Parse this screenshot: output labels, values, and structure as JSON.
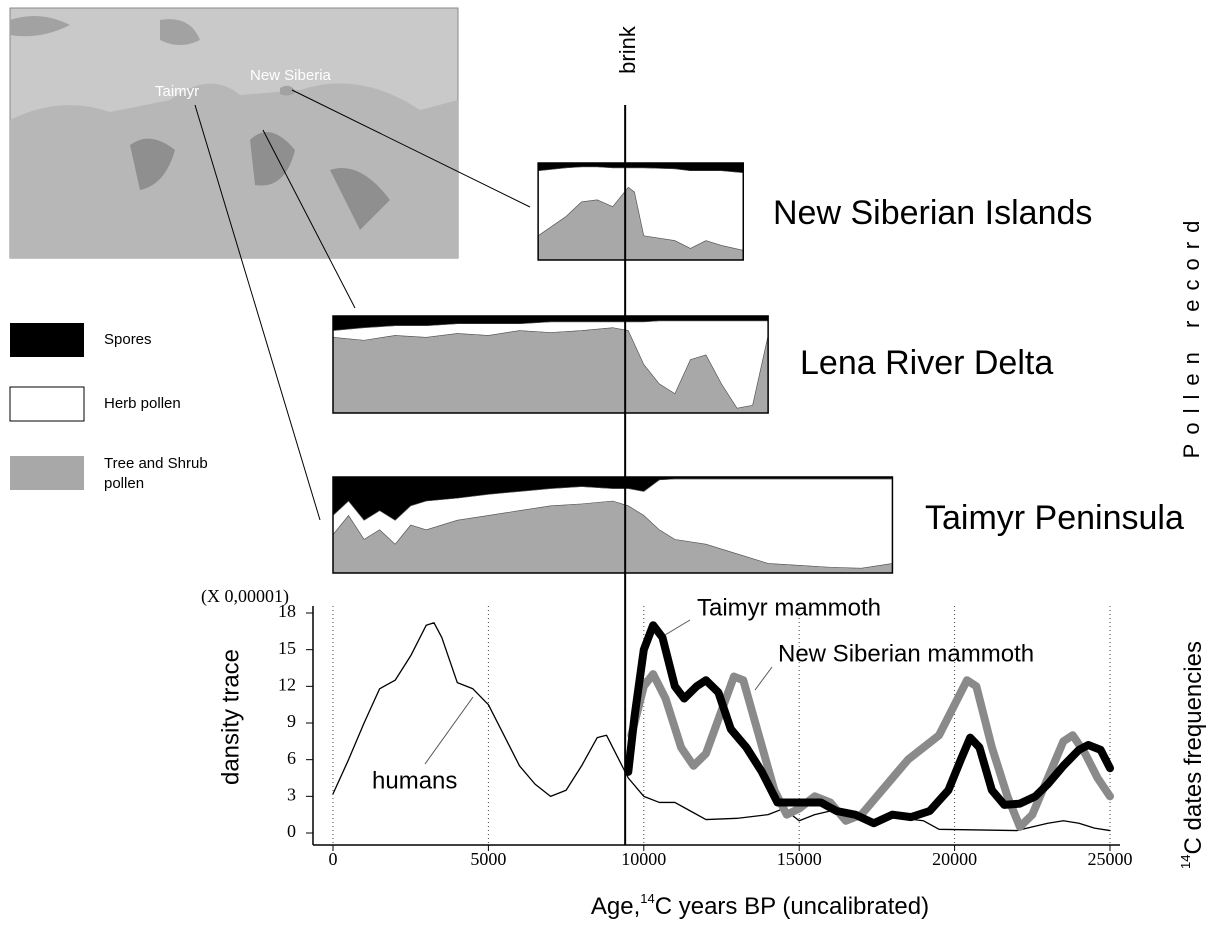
{
  "map": {
    "labels": [
      "Taimyr",
      "New Siberia"
    ]
  },
  "chart_data": [
    {
      "type": "stacked-area",
      "side_label": "Pollen record",
      "legend": [
        {
          "name": "Spores",
          "color": "#000000"
        },
        {
          "name": "Herb pollen",
          "color": "#ffffff"
        },
        {
          "name": "Tree and Shrub pollen",
          "color": "#a8a8a8"
        }
      ],
      "panels": [
        {
          "title": "New Siberian Islands",
          "x": [
            6600,
            7500,
            8000,
            8500,
            9000,
            9500,
            9700,
            10000,
            11000,
            11500,
            12000,
            12500,
            13200
          ],
          "layers": [
            [
              8,
              5,
              4,
              4,
              5,
              5,
              5,
              5,
              6,
              8,
              8,
              8,
              10
            ],
            [
              67,
              50,
              36,
              34,
              40,
              20,
              25,
              70,
              74,
              80,
              72,
              77,
              80
            ],
            [
              25,
              45,
              60,
              62,
              55,
              75,
              70,
              25,
              20,
              12,
              20,
              15,
              10
            ]
          ]
        },
        {
          "title": "Lena River Delta",
          "x": [
            0,
            1000,
            2000,
            3000,
            4000,
            5000,
            6000,
            7000,
            8000,
            9000,
            9500,
            10000,
            10500,
            11000,
            11500,
            12000,
            12500,
            13000,
            13500,
            14000
          ],
          "layers": [
            [
              15,
              12,
              10,
              10,
              8,
              8,
              8,
              6,
              6,
              6,
              6,
              6,
              5,
              5,
              5,
              5,
              5,
              5,
              5,
              5
            ],
            [
              7,
              13,
              10,
              12,
              10,
              12,
              7,
              11,
              9,
              6,
              9,
              44,
              65,
              75,
              40,
              35,
              65,
              90,
              87,
              15
            ],
            [
              78,
              75,
              80,
              78,
              82,
              80,
              85,
              83,
              85,
              88,
              85,
              50,
              30,
              20,
              55,
              60,
              30,
              5,
              8,
              80
            ]
          ]
        },
        {
          "title": "Taimyr Peninsula",
          "x": [
            0,
            500,
            1000,
            1500,
            2000,
            2500,
            3000,
            4000,
            5000,
            6000,
            7000,
            8000,
            9000,
            9500,
            10000,
            10500,
            11000,
            12000,
            13000,
            14000,
            15000,
            16000,
            17000,
            18000
          ],
          "layers": [
            [
              40,
              25,
              45,
              35,
              45,
              30,
              25,
              22,
              18,
              15,
              12,
              10,
              12,
              12,
              15,
              3,
              2,
              2,
              2,
              2,
              2,
              2,
              2,
              2
            ],
            [
              20,
              15,
              20,
              20,
              25,
              20,
              30,
              23,
              22,
              20,
              18,
              18,
              13,
              18,
              25,
              52,
              63,
              68,
              78,
              88,
              90,
              92,
              93,
              88
            ],
            [
              40,
              60,
              35,
              45,
              30,
              50,
              45,
              55,
              60,
              65,
              70,
              72,
              75,
              70,
              60,
              45,
              35,
              30,
              20,
              10,
              8,
              6,
              5,
              10
            ]
          ]
        }
      ]
    },
    {
      "type": "line",
      "y_unit": "(X 0,00001)",
      "ylabel": "dansity trace",
      "xlabel": [
        "Age,",
        "14",
        "C years BP (uncalibrated)"
      ],
      "y2label": [
        "14",
        "C dates frequencies"
      ],
      "xlim": [
        0,
        25000
      ],
      "ylim": [
        0,
        18
      ],
      "xticks": [
        0,
        5000,
        10000,
        15000,
        20000,
        25000
      ],
      "yticks": [
        0,
        3,
        6,
        9,
        12,
        15,
        18
      ],
      "xgrid": true,
      "brink": {
        "label": "brink",
        "x": 9400
      },
      "series": [
        {
          "name": "humans",
          "color": "#000000",
          "width": 1.3,
          "x": [
            0,
            500,
            1000,
            1500,
            2000,
            2500,
            3000,
            3250,
            3500,
            4000,
            4500,
            5000,
            5500,
            6000,
            6500,
            7000,
            7500,
            8000,
            8500,
            8800,
            9000,
            9500,
            10000,
            10500,
            11000,
            11500,
            12000,
            13000,
            14000,
            14500,
            15000,
            15500,
            16000,
            16500,
            17000,
            17500,
            18000,
            19000,
            19500,
            22000,
            22500,
            23000,
            23500,
            24000,
            24500,
            25000
          ],
          "values": [
            3.2,
            6,
            9,
            11.8,
            12.5,
            14.5,
            17,
            17.2,
            16,
            12.3,
            11.8,
            10.5,
            8,
            5.5,
            4,
            3,
            3.5,
            5.5,
            7.8,
            8,
            7,
            4.5,
            3,
            2.5,
            2.5,
            1.8,
            1.1,
            1.2,
            1.5,
            2,
            1,
            1.5,
            1.8,
            1.5,
            1.2,
            0.9,
            1.3,
            1,
            0.3,
            0.2,
            0.5,
            0.8,
            1,
            0.8,
            0.4,
            0.2
          ]
        },
        {
          "name": "New Siberian mammoth",
          "color": "#8a8a8a",
          "width": 8,
          "x": [
            9600,
            10000,
            10300,
            10700,
            11200,
            11600,
            12000,
            12500,
            12900,
            13200,
            13700,
            14200,
            14600,
            15000,
            15500,
            16000,
            16500,
            17000,
            17500,
            18000,
            18500,
            19000,
            19500,
            20000,
            20400,
            20700,
            21200,
            21700,
            22100,
            22500,
            23000,
            23500,
            23800,
            24200,
            24600,
            25000
          ],
          "values": [
            8,
            12,
            13,
            11,
            7,
            5.5,
            6.5,
            10,
            12.8,
            12.5,
            8,
            3.5,
            1.5,
            2,
            3,
            2.5,
            1,
            1.5,
            3,
            4.5,
            6,
            7,
            8,
            10.5,
            12.5,
            12,
            7,
            3,
            0.5,
            1.5,
            4.5,
            7.5,
            8,
            6.5,
            4.5,
            3
          ]
        },
        {
          "name": "Taimyr mammoth",
          "color": "#000000",
          "width": 8,
          "x": [
            9500,
            9700,
            10000,
            10300,
            10600,
            11000,
            11300,
            11700,
            12000,
            12400,
            12800,
            13300,
            13800,
            14300,
            14700,
            15200,
            15700,
            16200,
            16800,
            17400,
            18000,
            18600,
            19200,
            19800,
            20200,
            20500,
            20800,
            21200,
            21600,
            22100,
            22600,
            23000,
            23500,
            24000,
            24300,
            24700,
            25000
          ],
          "values": [
            5,
            9.5,
            15,
            17,
            16,
            12,
            11,
            12,
            12.5,
            11.5,
            8.5,
            7,
            5,
            2.5,
            2.5,
            2.5,
            2.5,
            1.8,
            1.5,
            0.8,
            1.5,
            1.3,
            1.8,
            3.5,
            6,
            7.8,
            7,
            3.5,
            2.3,
            2.4,
            3,
            4,
            5.5,
            6.8,
            7.2,
            6.8,
            5.3
          ]
        }
      ]
    }
  ]
}
